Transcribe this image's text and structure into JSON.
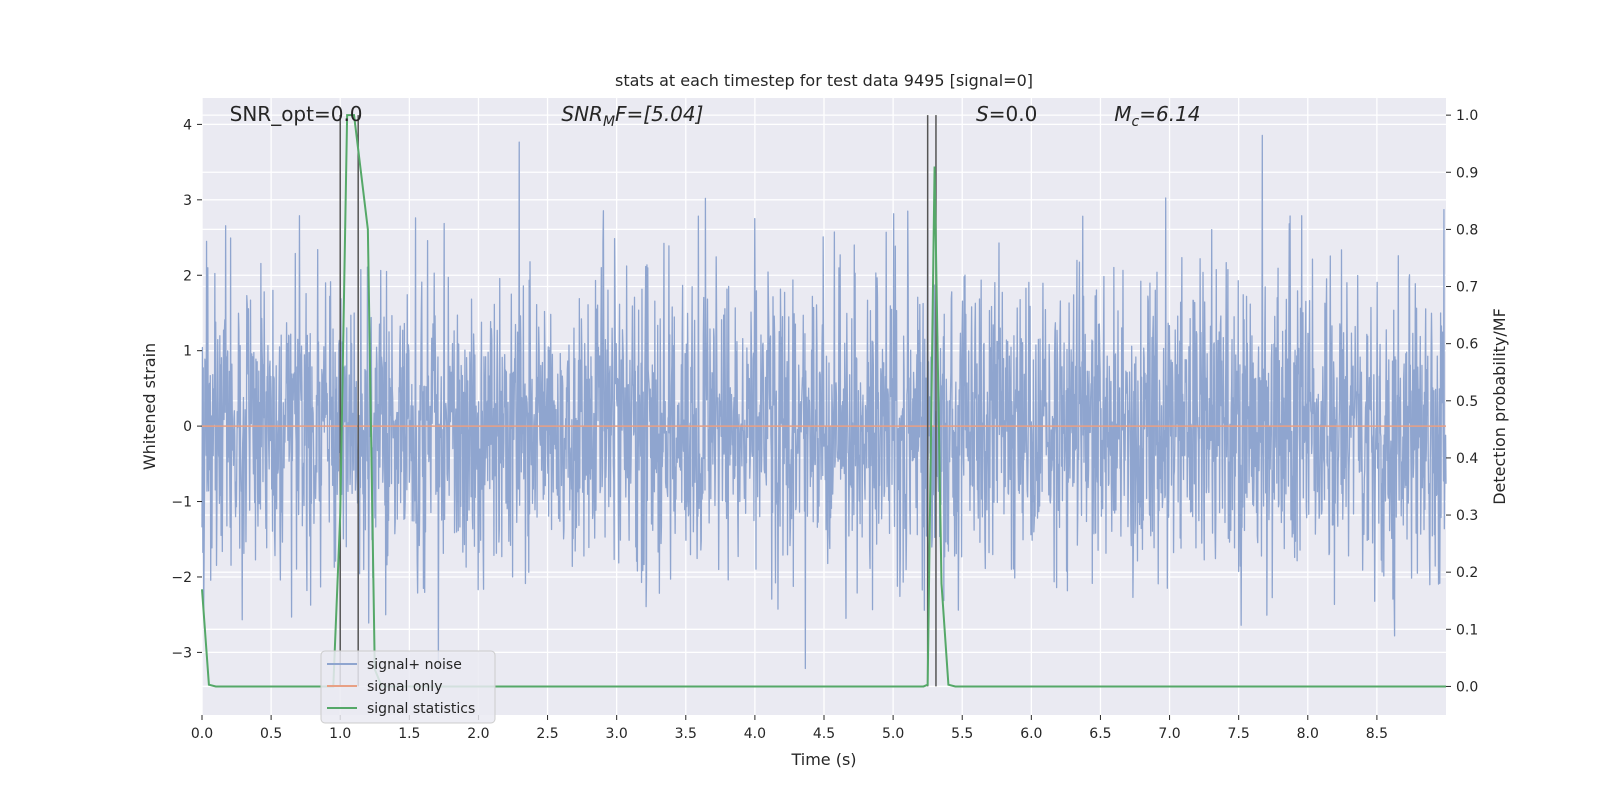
{
  "chart_data": {
    "type": "line",
    "title": "stats at each timestep for test data 9495 [signal=0]",
    "xlabel": "Time (s)",
    "ylabel_left": "Whitened strain",
    "ylabel_right": "Detection probability/MF",
    "xlim": [
      0.0,
      9.0
    ],
    "ylim_left": [
      -3.83,
      4.35
    ],
    "ylim_right": [
      -0.05,
      1.03
    ],
    "x_ticks": [
      0.0,
      0.5,
      1.0,
      1.5,
      2.0,
      2.5,
      3.0,
      3.5,
      4.0,
      4.5,
      5.0,
      5.5,
      6.0,
      6.5,
      7.0,
      7.5,
      8.0,
      8.5
    ],
    "x_tick_labels": [
      "0.0",
      "0.5",
      "1.0",
      "1.5",
      "2.0",
      "2.5",
      "3.0",
      "3.5",
      "4.0",
      "4.5",
      "5.0",
      "5.5",
      "6.0",
      "6.5",
      "7.0",
      "7.5",
      "8.0",
      "8.5"
    ],
    "y_left_ticks": [
      -3,
      -2,
      -1,
      0,
      1,
      2,
      3,
      4
    ],
    "y_left_tick_labels": [
      "−3",
      "−2",
      "−1",
      "0",
      "1",
      "2",
      "3",
      "4"
    ],
    "y_right_ticks": [
      0.0,
      0.1,
      0.2,
      0.3,
      0.4,
      0.5,
      0.6,
      0.7,
      0.8,
      0.9,
      1.0
    ],
    "y_right_tick_labels": [
      "0.0",
      "0.1",
      "0.2",
      "0.3",
      "0.4",
      "0.5",
      "0.6",
      "0.7",
      "0.8",
      "0.9",
      "1.0"
    ],
    "grid": true,
    "legend_position": "lower-left",
    "series": [
      {
        "name": "signal+ noise",
        "axis": "left",
        "color": "#8fa5cf",
        "kind": "noise",
        "approx_range": [
          -3.5,
          4.0
        ],
        "typical_std": 1.0
      },
      {
        "name": "signal only",
        "axis": "left",
        "color": "#e8a084",
        "x": [
          0.0,
          9.0
        ],
        "y": [
          0.0,
          0.0
        ]
      },
      {
        "name": "signal statistics",
        "axis": "right",
        "color": "#55a868",
        "x": [
          0.0,
          0.05,
          0.1,
          0.9,
          0.95,
          1.0,
          1.05,
          1.1,
          1.15,
          1.2,
          1.25,
          1.3,
          5.22,
          5.25,
          5.3,
          5.35,
          5.4,
          5.45,
          9.0
        ],
        "y": [
          0.17,
          0.003,
          0.0,
          0.0,
          0.0,
          0.3,
          1.0,
          1.0,
          0.9,
          0.8,
          0.03,
          0.0,
          0.0,
          0.003,
          0.91,
          0.18,
          0.003,
          0.0,
          0.0
        ]
      }
    ],
    "vertical_lines": [
      1.0,
      1.13,
      5.25,
      5.31
    ],
    "vertical_lines_color": "#555555",
    "annotations": [
      {
        "text": "SNR_opt=0.0",
        "x": 0.2,
        "y_right": 1.0
      },
      {
        "text": "SNR",
        "sub": "M",
        "rest": "F=[5.04]",
        "x": 2.6,
        "y_right": 1.0,
        "italic": true
      },
      {
        "text": "S",
        "rest": "=0.0",
        "x": 5.6,
        "y_right": 1.0,
        "italic": true
      },
      {
        "text": "M",
        "sub": "c",
        "rest": "=6.14",
        "x": 6.6,
        "y_right": 1.0,
        "italic": true
      }
    ]
  }
}
